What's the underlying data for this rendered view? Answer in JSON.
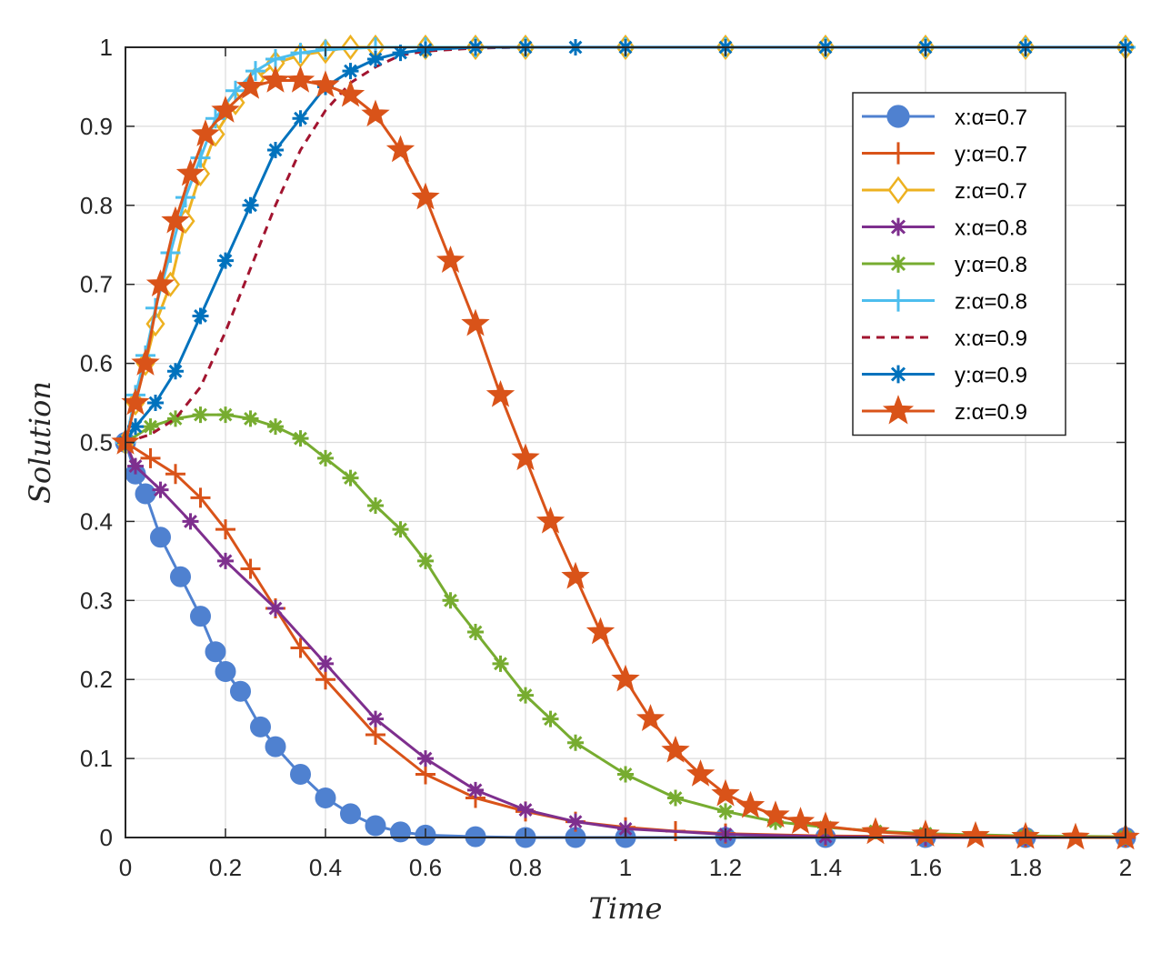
{
  "chart_data": {
    "type": "line",
    "title": "",
    "xlabel": "Time",
    "ylabel": "Solution",
    "xlim": [
      0,
      2
    ],
    "ylim": [
      0,
      1
    ],
    "grid": true,
    "legend_position": "top-right",
    "x_ticks": [
      "0",
      "0.2",
      "0.4",
      "0.6",
      "0.8",
      "1",
      "1.2",
      "1.4",
      "1.6",
      "1.8",
      "2"
    ],
    "y_ticks": [
      "0",
      "0.1",
      "0.2",
      "0.3",
      "0.4",
      "0.5",
      "0.6",
      "0.7",
      "0.8",
      "0.9",
      "1"
    ],
    "x_tick_values": [
      0,
      0.2,
      0.4,
      0.6,
      0.8,
      1.0,
      1.2,
      1.4,
      1.6,
      1.8,
      2.0
    ],
    "y_tick_values": [
      0,
      0.1,
      0.2,
      0.3,
      0.4,
      0.5,
      0.6,
      0.7,
      0.8,
      0.9,
      1.0
    ],
    "series": [
      {
        "name": "x:α=0.7",
        "color": "#4f81d0",
        "marker": "circle",
        "dashed": false,
        "x": [
          0,
          0.02,
          0.04,
          0.07,
          0.11,
          0.15,
          0.18,
          0.2,
          0.23,
          0.27,
          0.3,
          0.35,
          0.4,
          0.45,
          0.5,
          0.55,
          0.6,
          0.7,
          0.8,
          0.9,
          1.0,
          1.2,
          1.4,
          1.6,
          1.8,
          2.0
        ],
        "y": [
          0.5,
          0.46,
          0.435,
          0.38,
          0.33,
          0.28,
          0.235,
          0.21,
          0.185,
          0.14,
          0.115,
          0.08,
          0.05,
          0.03,
          0.015,
          0.007,
          0.003,
          0.001,
          0.0,
          0.0,
          0.0,
          0.0,
          0.0,
          0.0,
          0.0,
          0.0
        ]
      },
      {
        "name": "y:α=0.7",
        "color": "#d95319",
        "marker": "plus",
        "dashed": false,
        "x": [
          0,
          0.05,
          0.1,
          0.15,
          0.2,
          0.25,
          0.3,
          0.35,
          0.4,
          0.5,
          0.6,
          0.7,
          0.8,
          0.9,
          1.0,
          1.1,
          1.2,
          1.4,
          1.6,
          1.8,
          2.0
        ],
        "y": [
          0.5,
          0.48,
          0.46,
          0.43,
          0.39,
          0.34,
          0.29,
          0.24,
          0.2,
          0.13,
          0.08,
          0.05,
          0.033,
          0.02,
          0.013,
          0.008,
          0.005,
          0.002,
          0.001,
          0.0,
          0.0
        ]
      },
      {
        "name": "z:α=0.7",
        "color": "#edb120",
        "marker": "diamond",
        "dashed": false,
        "x": [
          0,
          0.02,
          0.04,
          0.06,
          0.09,
          0.12,
          0.15,
          0.18,
          0.22,
          0.26,
          0.3,
          0.35,
          0.4,
          0.45,
          0.5,
          0.6,
          0.7,
          0.8,
          1.0,
          1.2,
          1.4,
          1.6,
          1.8,
          2.0
        ],
        "y": [
          0.5,
          0.55,
          0.6,
          0.65,
          0.7,
          0.78,
          0.84,
          0.89,
          0.93,
          0.96,
          0.98,
          0.99,
          0.995,
          1.0,
          1.0,
          1.0,
          1.0,
          1.0,
          1.0,
          1.0,
          1.0,
          1.0,
          1.0,
          1.0
        ]
      },
      {
        "name": "x:α=0.8",
        "color": "#7e2f8e",
        "marker": "asterisk",
        "dashed": false,
        "x": [
          0,
          0.02,
          0.07,
          0.13,
          0.2,
          0.3,
          0.4,
          0.5,
          0.6,
          0.7,
          0.8,
          0.9,
          1.0,
          1.2,
          1.4,
          1.6,
          1.8,
          2.0
        ],
        "y": [
          0.5,
          0.47,
          0.44,
          0.4,
          0.35,
          0.29,
          0.22,
          0.15,
          0.1,
          0.06,
          0.035,
          0.02,
          0.011,
          0.004,
          0.001,
          0.0,
          0.0,
          0.0
        ]
      },
      {
        "name": "y:α=0.8",
        "color": "#77ac30",
        "marker": "asterisk",
        "dashed": false,
        "x": [
          0,
          0.05,
          0.1,
          0.15,
          0.2,
          0.25,
          0.3,
          0.35,
          0.4,
          0.45,
          0.5,
          0.55,
          0.6,
          0.65,
          0.7,
          0.75,
          0.8,
          0.85,
          0.9,
          1.0,
          1.1,
          1.2,
          1.3,
          1.4,
          1.5,
          1.6,
          1.8,
          2.0
        ],
        "y": [
          0.5,
          0.52,
          0.53,
          0.535,
          0.535,
          0.53,
          0.52,
          0.505,
          0.48,
          0.455,
          0.42,
          0.39,
          0.35,
          0.3,
          0.26,
          0.22,
          0.18,
          0.15,
          0.12,
          0.08,
          0.05,
          0.033,
          0.02,
          0.013,
          0.008,
          0.005,
          0.002,
          0.001
        ]
      },
      {
        "name": "z:α=0.8",
        "color": "#4dbeee",
        "marker": "plus",
        "dashed": false,
        "x": [
          0,
          0.02,
          0.04,
          0.06,
          0.09,
          0.12,
          0.15,
          0.18,
          0.22,
          0.26,
          0.3,
          0.35,
          0.4,
          0.5,
          0.6,
          0.7,
          0.8,
          1.0,
          1.2,
          1.4,
          1.6,
          1.8,
          2.0
        ],
        "y": [
          0.5,
          0.56,
          0.61,
          0.67,
          0.74,
          0.81,
          0.86,
          0.91,
          0.945,
          0.97,
          0.985,
          0.993,
          0.997,
          1.0,
          1.0,
          1.0,
          1.0,
          1.0,
          1.0,
          1.0,
          1.0,
          1.0,
          1.0
        ]
      },
      {
        "name": "x:α=0.9",
        "color": "#a2142f",
        "marker": "none",
        "dashed": true,
        "x": [
          0,
          0.05,
          0.1,
          0.15,
          0.2,
          0.25,
          0.3,
          0.35,
          0.4,
          0.45,
          0.5,
          0.55,
          0.6,
          0.7,
          0.8,
          1.0,
          1.2,
          1.4,
          1.6,
          1.8,
          2.0
        ],
        "y": [
          0.5,
          0.51,
          0.53,
          0.57,
          0.64,
          0.72,
          0.8,
          0.87,
          0.92,
          0.955,
          0.975,
          0.99,
          0.995,
          0.999,
          1.0,
          1.0,
          1.0,
          1.0,
          1.0,
          1.0,
          1.0
        ]
      },
      {
        "name": "y:α=0.9",
        "color": "#0072bd",
        "marker": "asterisk",
        "dashed": false,
        "x": [
          0,
          0.02,
          0.06,
          0.1,
          0.15,
          0.2,
          0.25,
          0.3,
          0.35,
          0.4,
          0.45,
          0.5,
          0.55,
          0.6,
          0.7,
          0.8,
          0.9,
          1.0,
          1.2,
          1.4,
          1.6,
          1.8,
          2.0
        ],
        "y": [
          0.5,
          0.52,
          0.55,
          0.59,
          0.66,
          0.73,
          0.8,
          0.87,
          0.91,
          0.95,
          0.97,
          0.985,
          0.993,
          0.997,
          1.0,
          1.0,
          1.0,
          1.0,
          1.0,
          1.0,
          1.0,
          1.0,
          1.0
        ]
      },
      {
        "name": "z:α=0.9",
        "color": "#d95319",
        "marker": "star",
        "dashed": false,
        "x": [
          0,
          0.02,
          0.04,
          0.07,
          0.1,
          0.13,
          0.16,
          0.2,
          0.25,
          0.3,
          0.35,
          0.4,
          0.45,
          0.5,
          0.55,
          0.6,
          0.65,
          0.7,
          0.75,
          0.8,
          0.85,
          0.9,
          0.95,
          1.0,
          1.05,
          1.1,
          1.15,
          1.2,
          1.25,
          1.3,
          1.35,
          1.4,
          1.5,
          1.6,
          1.7,
          1.8,
          1.9,
          2.0
        ],
        "y": [
          0.5,
          0.55,
          0.6,
          0.7,
          0.78,
          0.84,
          0.89,
          0.92,
          0.95,
          0.958,
          0.958,
          0.952,
          0.94,
          0.915,
          0.87,
          0.81,
          0.73,
          0.65,
          0.56,
          0.48,
          0.4,
          0.33,
          0.26,
          0.2,
          0.15,
          0.11,
          0.08,
          0.055,
          0.04,
          0.028,
          0.02,
          0.014,
          0.007,
          0.004,
          0.002,
          0.001,
          0.0,
          0.0
        ]
      }
    ]
  }
}
